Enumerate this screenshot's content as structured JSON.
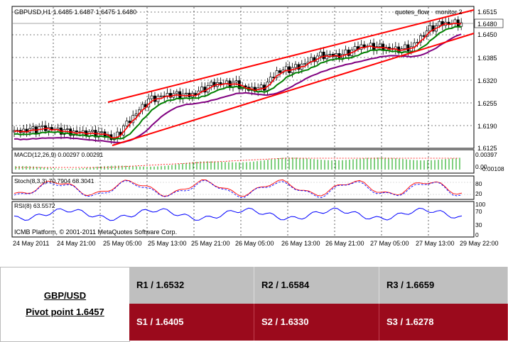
{
  "chart": {
    "header": "GBPUSD,H1  1.6485 1.6487 1.6475 1.6480",
    "indicator_labels": [
      "quotes_flow",
      "monitor 2"
    ],
    "price_ticks": [
      "1.6515",
      "1.6480",
      "1.6450",
      "1.6385",
      "1.6320",
      "1.6255",
      "1.6190",
      "1.6125"
    ],
    "current_price": "1.6480",
    "macd_label": "MACD(12,26,9) 0.00297 0.00291",
    "macd_ticks": [
      "0.00397",
      "0.00",
      "-0.00108"
    ],
    "stoch_label": "Stoch(8,3,3) 70.7904 68.3041",
    "stoch_ticks": [
      "80",
      "20"
    ],
    "rsi_label": "RSI(8) 63.5572",
    "rsi_ticks": [
      "100",
      "70",
      "30",
      "0"
    ],
    "copyright": "ICMB Platform, © 2001-2011 MetaQuotes Software Corp.",
    "time_ticks": [
      "24 May 2011",
      "24 May 21:00",
      "25 May 05:00",
      "25 May 13:00",
      "25 May 21:00",
      "26 May 05:00",
      "26 May 13:00",
      "26 May 21:00",
      "27 May 05:00",
      "27 May 13:00",
      "29 May 22:00"
    ],
    "colors": {
      "channel": "#ff0000",
      "ma_fast": "#ff0000",
      "ma_mid": "#008000",
      "ma_slow": "#800080",
      "macd_hist": "#00a000",
      "rsi": "#0000ff"
    }
  },
  "pivot": {
    "pair": "GBP/USD",
    "pivot_text": "Pivot point 1.6457",
    "resistances": [
      "R1 / 1.6532",
      "R2 / 1.6584",
      "R3 / 1.6659"
    ],
    "supports": [
      "S1 / 1.6405",
      "S2 / 1.6330",
      "S3 / 1.6278"
    ]
  }
}
